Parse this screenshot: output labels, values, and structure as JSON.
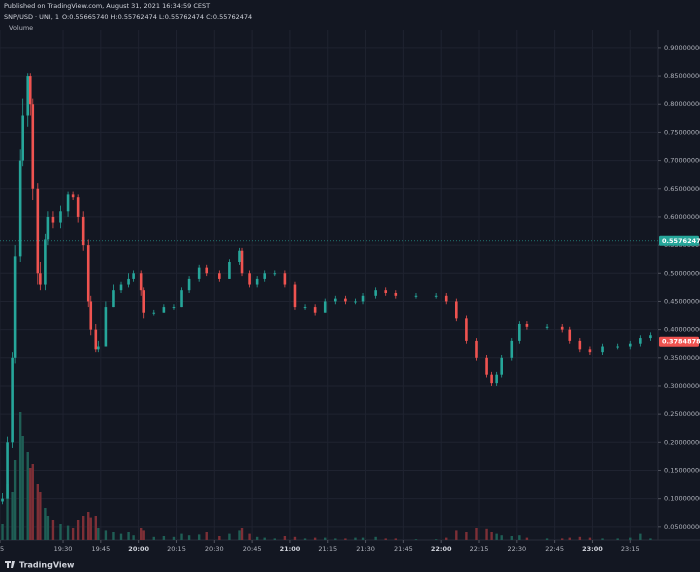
{
  "chart_data": {
    "type": "candlestick",
    "published": "Published on TradingView.com, August 31, 2021 16:34:59 CEST",
    "symbol": "SNP/USD · UNI, 1",
    "ohlc_text": "O:0.55665740 H:0.55762474 L:0.55762474 C:0.55762474",
    "volume_label": "Volume",
    "brand": "TradingView",
    "up_color": "#26a69a",
    "down_color": "#ef5350",
    "volume_up_color": "#1f5e55",
    "volume_down_color": "#7d2f36",
    "grid": true,
    "xlim": [
      1145,
      1406
    ],
    "ylim": [
      0,
      0.985
    ],
    "xticks": [
      {
        "value": 1145,
        "label": "05"
      },
      {
        "value": 1170,
        "label": "19:30"
      },
      {
        "value": 1185,
        "label": "19:45"
      },
      {
        "value": 1200,
        "label": "20:00"
      },
      {
        "value": 1215,
        "label": "20:15"
      },
      {
        "value": 1230,
        "label": "20:30"
      },
      {
        "value": 1245,
        "label": "20:45"
      },
      {
        "value": 1260,
        "label": "21:00"
      },
      {
        "value": 1275,
        "label": "21:15"
      },
      {
        "value": 1290,
        "label": "21:30"
      },
      {
        "value": 1305,
        "label": "21:45"
      },
      {
        "value": 1320,
        "label": "22:00"
      },
      {
        "value": 1335,
        "label": "22:15"
      },
      {
        "value": 1350,
        "label": "22:30"
      },
      {
        "value": 1365,
        "label": "22:45"
      },
      {
        "value": 1380,
        "label": "23:00"
      },
      {
        "value": 1395,
        "label": "23:15"
      }
    ],
    "yticks": [
      {
        "value": 0.05,
        "label": "0.05000000"
      },
      {
        "value": 0.1,
        "label": "0.10000000"
      },
      {
        "value": 0.15,
        "label": "0.15000000"
      },
      {
        "value": 0.2,
        "label": "0.20000000"
      },
      {
        "value": 0.25,
        "label": "0.25000000"
      },
      {
        "value": 0.3,
        "label": "0.30000000"
      },
      {
        "value": 0.35,
        "label": "0.35000000"
      },
      {
        "value": 0.4,
        "label": "0.40000000"
      },
      {
        "value": 0.45,
        "label": "0.45000000"
      },
      {
        "value": 0.5,
        "label": "0.50000000"
      },
      {
        "value": 0.55,
        "label": "0.55000000"
      },
      {
        "value": 0.6,
        "label": "0.60000000"
      },
      {
        "value": 0.65,
        "label": "0.65000000"
      },
      {
        "value": 0.7,
        "label": "0.70000000"
      },
      {
        "value": 0.75,
        "label": "0.75000000"
      },
      {
        "value": 0.8,
        "label": "0.80000000"
      },
      {
        "value": 0.85,
        "label": "0.85000000"
      },
      {
        "value": 0.9,
        "label": "0.90000000"
      }
    ],
    "price_tags": [
      {
        "value": 0.55762474,
        "color": "#26a69a"
      },
      {
        "value": 0.37848782,
        "color": "#ef5350"
      }
    ],
    "x": [
      1146,
      1148,
      1150,
      1151,
      1153,
      1154,
      1156,
      1157,
      1158,
      1160,
      1161,
      1163,
      1164,
      1166,
      1169,
      1172,
      1174,
      1176,
      1178,
      1180,
      1181,
      1183,
      1184,
      1187,
      1190,
      1193,
      1196,
      1198,
      1201,
      1202,
      1206,
      1210,
      1214,
      1217,
      1220,
      1224,
      1227,
      1232,
      1236,
      1240,
      1241,
      1244,
      1247,
      1250,
      1254,
      1258,
      1262,
      1266,
      1270,
      1274,
      1278,
      1282,
      1286,
      1289,
      1294,
      1298,
      1302,
      1310,
      1318,
      1322,
      1326,
      1330,
      1334,
      1338,
      1340,
      1342,
      1344,
      1348,
      1351,
      1354,
      1362,
      1368,
      1371,
      1375,
      1379,
      1384,
      1390,
      1395,
      1399,
      1403
    ],
    "open": [
      0.095,
      0.1,
      0.2,
      0.35,
      0.53,
      0.7,
      0.78,
      0.85,
      0.8,
      0.65,
      0.5,
      0.48,
      0.56,
      0.6,
      0.59,
      0.61,
      0.64,
      0.635,
      0.6,
      0.55,
      0.45,
      0.4,
      0.365,
      0.37,
      0.44,
      0.47,
      0.48,
      0.49,
      0.5,
      0.47,
      0.43,
      0.43,
      0.44,
      0.44,
      0.47,
      0.49,
      0.51,
      0.5,
      0.49,
      0.52,
      0.54,
      0.5,
      0.48,
      0.49,
      0.5,
      0.5,
      0.48,
      0.44,
      0.44,
      0.43,
      0.45,
      0.455,
      0.45,
      0.45,
      0.46,
      0.47,
      0.465,
      0.46,
      0.46,
      0.46,
      0.45,
      0.42,
      0.38,
      0.35,
      0.32,
      0.305,
      0.32,
      0.35,
      0.38,
      0.41,
      0.405,
      0.405,
      0.4,
      0.38,
      0.365,
      0.36,
      0.37,
      0.37,
      0.375,
      0.385
    ],
    "high": [
      0.11,
      0.21,
      0.36,
      0.55,
      0.72,
      0.81,
      0.855,
      0.855,
      0.81,
      0.66,
      0.52,
      0.57,
      0.61,
      0.61,
      0.62,
      0.645,
      0.645,
      0.64,
      0.61,
      0.56,
      0.46,
      0.41,
      0.38,
      0.45,
      0.48,
      0.485,
      0.5,
      0.505,
      0.505,
      0.475,
      0.435,
      0.445,
      0.445,
      0.475,
      0.495,
      0.515,
      0.515,
      0.505,
      0.525,
      0.545,
      0.545,
      0.505,
      0.495,
      0.505,
      0.505,
      0.505,
      0.485,
      0.445,
      0.445,
      0.455,
      0.46,
      0.46,
      0.455,
      0.465,
      0.475,
      0.475,
      0.47,
      0.465,
      0.465,
      0.465,
      0.455,
      0.425,
      0.385,
      0.355,
      0.325,
      0.325,
      0.355,
      0.385,
      0.415,
      0.415,
      0.41,
      0.41,
      0.405,
      0.385,
      0.37,
      0.375,
      0.375,
      0.38,
      0.39,
      0.395
    ],
    "low": [
      0.09,
      0.1,
      0.19,
      0.34,
      0.52,
      0.69,
      0.76,
      0.78,
      0.63,
      0.48,
      0.47,
      0.47,
      0.55,
      0.58,
      0.58,
      0.6,
      0.63,
      0.59,
      0.54,
      0.44,
      0.39,
      0.36,
      0.36,
      0.37,
      0.44,
      0.465,
      0.475,
      0.485,
      0.46,
      0.42,
      0.425,
      0.43,
      0.435,
      0.44,
      0.465,
      0.485,
      0.495,
      0.485,
      0.49,
      0.515,
      0.495,
      0.475,
      0.475,
      0.485,
      0.495,
      0.475,
      0.435,
      0.435,
      0.425,
      0.43,
      0.445,
      0.445,
      0.445,
      0.445,
      0.455,
      0.46,
      0.455,
      0.455,
      0.455,
      0.445,
      0.415,
      0.375,
      0.345,
      0.315,
      0.3,
      0.3,
      0.315,
      0.345,
      0.375,
      0.4,
      0.4,
      0.395,
      0.375,
      0.36,
      0.355,
      0.355,
      0.365,
      0.365,
      0.37,
      0.38
    ],
    "close": [
      0.1,
      0.2,
      0.35,
      0.53,
      0.7,
      0.78,
      0.85,
      0.8,
      0.65,
      0.5,
      0.48,
      0.56,
      0.6,
      0.59,
      0.61,
      0.64,
      0.635,
      0.6,
      0.55,
      0.45,
      0.4,
      0.365,
      0.37,
      0.44,
      0.47,
      0.48,
      0.49,
      0.5,
      0.47,
      0.43,
      0.43,
      0.44,
      0.44,
      0.47,
      0.49,
      0.51,
      0.5,
      0.49,
      0.52,
      0.54,
      0.5,
      0.48,
      0.49,
      0.5,
      0.5,
      0.48,
      0.44,
      0.44,
      0.43,
      0.45,
      0.455,
      0.45,
      0.45,
      0.46,
      0.47,
      0.465,
      0.46,
      0.46,
      0.46,
      0.45,
      0.42,
      0.38,
      0.35,
      0.32,
      0.305,
      0.32,
      0.35,
      0.38,
      0.41,
      0.405,
      0.405,
      0.4,
      0.38,
      0.365,
      0.36,
      0.37,
      0.37,
      0.375,
      0.385,
      0.39
    ],
    "volume": [
      20,
      70,
      60,
      100,
      160,
      130,
      110,
      90,
      95,
      70,
      60,
      40,
      30,
      25,
      20,
      18,
      15,
      25,
      30,
      35,
      28,
      30,
      15,
      12,
      10,
      8,
      10,
      6,
      15,
      12,
      4,
      5,
      4,
      8,
      6,
      7,
      10,
      5,
      8,
      12,
      15,
      8,
      4,
      3,
      2,
      5,
      4,
      2,
      3,
      3,
      2,
      2,
      3,
      3,
      4,
      2,
      2,
      1,
      1,
      3,
      12,
      10,
      15,
      14,
      10,
      8,
      6,
      5,
      6,
      3,
      2,
      2,
      3,
      4,
      3,
      2,
      2,
      3,
      8,
      2
    ]
  }
}
